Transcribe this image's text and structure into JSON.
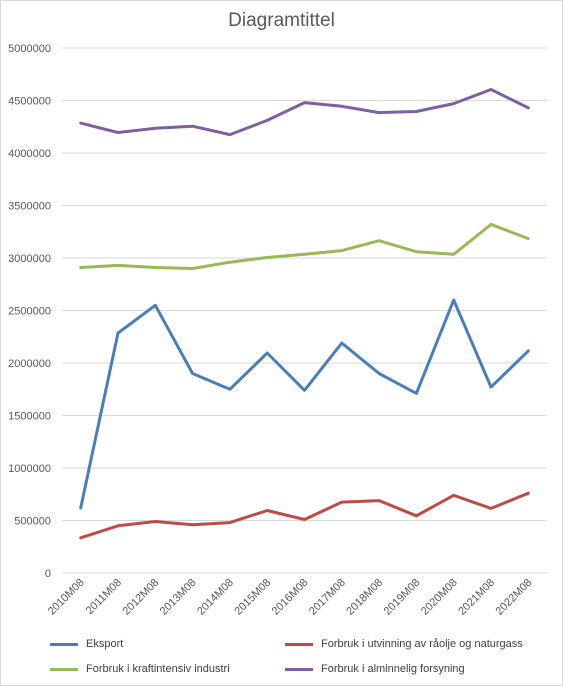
{
  "chart_data": {
    "type": "line",
    "title": "Diagramtittel",
    "xlabel": "",
    "ylabel": "",
    "ylim": [
      0,
      5000000
    ],
    "ytick_labels": [
      "0",
      "500000",
      "1000000",
      "1500000",
      "2000000",
      "2500000",
      "3000000",
      "3500000",
      "4000000",
      "4500000",
      "5000000"
    ],
    "ytick_values": [
      0,
      500000,
      1000000,
      1500000,
      2000000,
      2500000,
      3000000,
      3500000,
      4000000,
      4500000,
      5000000
    ],
    "grid": true,
    "legend_position": "bottom",
    "categories": [
      "2010M08",
      "2011M08",
      "2012M08",
      "2013M08",
      "2014M08",
      "2015M08",
      "2016M08",
      "2017M08",
      "2018M08",
      "2019M08",
      "2020M08",
      "2021M08",
      "2022M08"
    ],
    "series": [
      {
        "name": "Eksport",
        "color": "#4a7ebb",
        "values": [
          620000,
          2285000,
          2550000,
          1900000,
          1750000,
          2095000,
          1740000,
          2190000,
          1900000,
          1710000,
          2600000,
          1770000,
          2115000
        ]
      },
      {
        "name": "Forbruk i utvinning av råolje og naturgass",
        "color": "#be4b48",
        "values": [
          335000,
          450000,
          490000,
          460000,
          480000,
          595000,
          510000,
          675000,
          690000,
          545000,
          740000,
          615000,
          760000
        ]
      },
      {
        "name": "Forbruk i kraftintensiv industri",
        "color": "#98b954",
        "values": [
          2910000,
          2930000,
          2910000,
          2900000,
          2960000,
          3005000,
          3035000,
          3070000,
          3165000,
          3060000,
          3035000,
          3320000,
          3185000
        ]
      },
      {
        "name": "Forbruk i alminnelig forsyning",
        "color": "#7d60a0",
        "values": [
          4285000,
          4195000,
          4235000,
          4255000,
          4175000,
          4310000,
          4480000,
          4445000,
          4385000,
          4395000,
          4470000,
          4605000,
          4430000
        ]
      }
    ]
  }
}
